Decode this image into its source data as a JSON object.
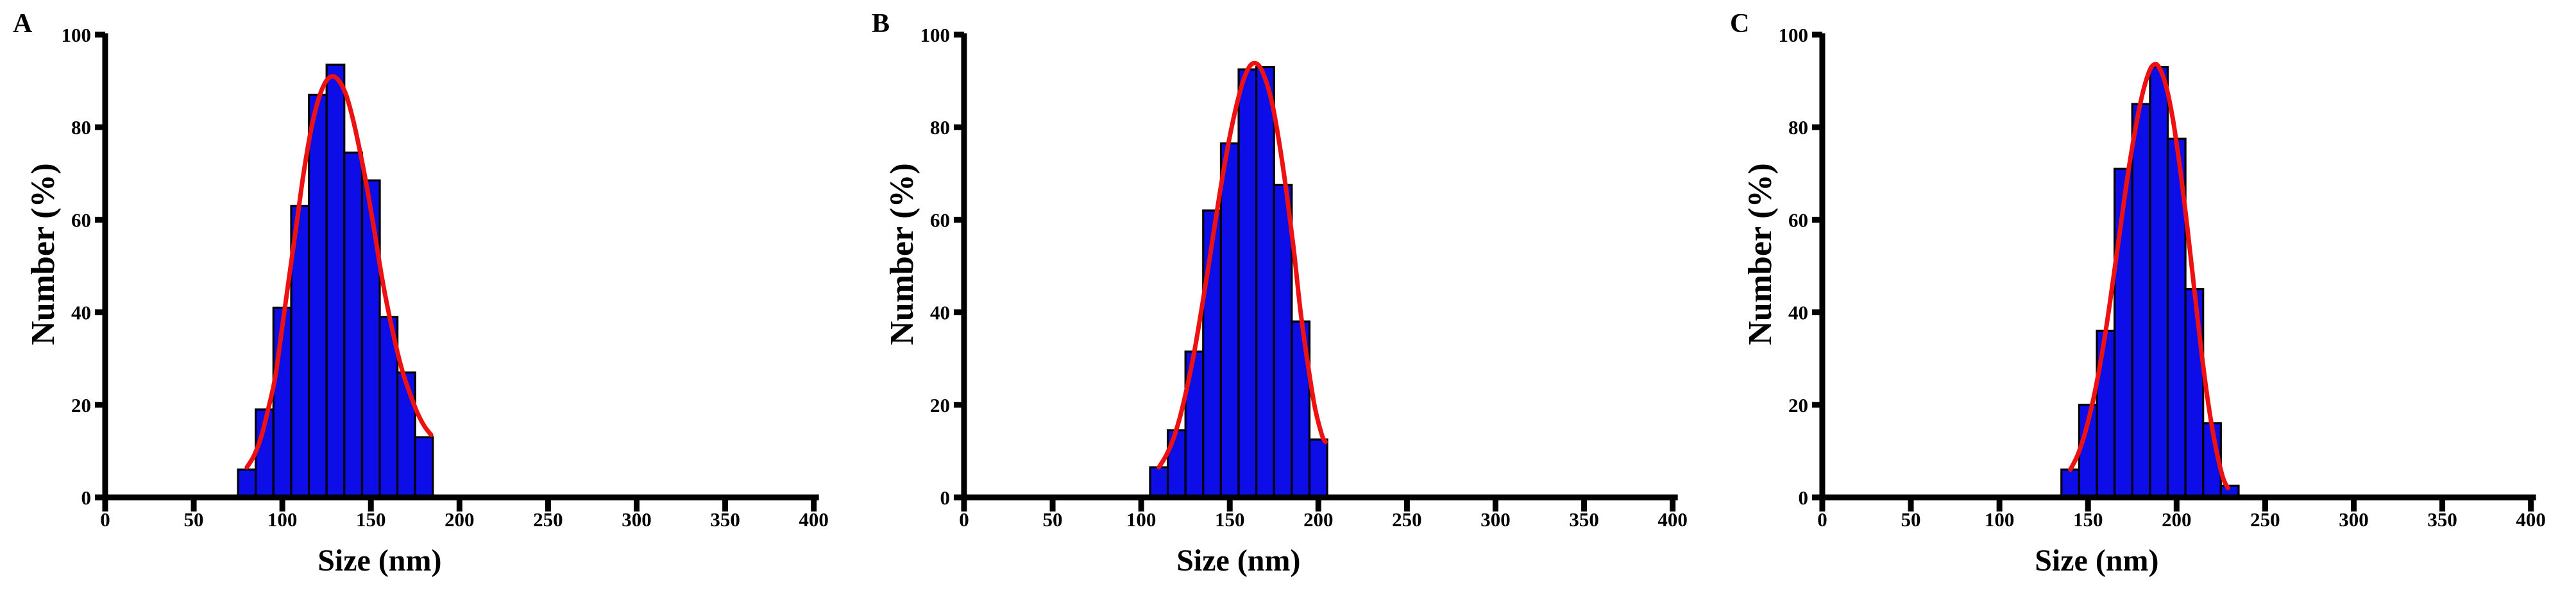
{
  "figure": {
    "background": "#ffffff",
    "styles": {
      "bar_fill": "#0D0DE8",
      "bar_edge": "#000000",
      "curve_color": "#EE1111",
      "axis_color": "#000000",
      "text_color": "#000000"
    }
  },
  "chart_data": [
    {
      "type": "bar",
      "panel_label": "A",
      "xlabel": "Size (nm)",
      "ylabel": "Number (%)",
      "xlim": [
        0,
        400
      ],
      "ylim": [
        0,
        100
      ],
      "x_ticks": [
        0,
        50,
        100,
        150,
        200,
        250,
        300,
        350,
        400
      ],
      "y_ticks": [
        0,
        20,
        40,
        60,
        80,
        100
      ],
      "grid": false,
      "legend": "none",
      "bin_start": 75,
      "bin_width": 10,
      "values": [
        6,
        19,
        41,
        63,
        87,
        93.5,
        74.5,
        68.5,
        39,
        27,
        13
      ],
      "fit_curve": {
        "name": "gaussian-fit",
        "peak_x": 128,
        "peak_y": 91,
        "points": [
          [
            80,
            6.5
          ],
          [
            84,
            9
          ],
          [
            88,
            13
          ],
          [
            92,
            19
          ],
          [
            96,
            26
          ],
          [
            100,
            37
          ],
          [
            104,
            48
          ],
          [
            108,
            59
          ],
          [
            112,
            70
          ],
          [
            116,
            79
          ],
          [
            120,
            85.5
          ],
          [
            124,
            89.5
          ],
          [
            128,
            91
          ],
          [
            132,
            90
          ],
          [
            136,
            87
          ],
          [
            140,
            81.5
          ],
          [
            144,
            74.5
          ],
          [
            148,
            66.5
          ],
          [
            152,
            57.5
          ],
          [
            156,
            48
          ],
          [
            160,
            40
          ],
          [
            164,
            33
          ],
          [
            168,
            27
          ],
          [
            172,
            22.5
          ],
          [
            176,
            18.5
          ],
          [
            180,
            15.5
          ],
          [
            184,
            13.5
          ]
        ]
      }
    },
    {
      "type": "bar",
      "panel_label": "B",
      "xlabel": "Size (nm)",
      "ylabel": "Number (%)",
      "xlim": [
        0,
        400
      ],
      "ylim": [
        0,
        100
      ],
      "x_ticks": [
        0,
        50,
        100,
        150,
        200,
        250,
        300,
        350,
        400
      ],
      "y_ticks": [
        0,
        20,
        40,
        60,
        80,
        100
      ],
      "grid": false,
      "legend": "none",
      "bin_start": 105,
      "bin_width": 10,
      "values": [
        6.5,
        14.5,
        31.5,
        62,
        76.5,
        92.5,
        93,
        67.5,
        38,
        12.5
      ],
      "fit_curve": {
        "name": "gaussian-fit",
        "peak_x": 163,
        "peak_y": 94,
        "points": [
          [
            110,
            6.5
          ],
          [
            114,
            9
          ],
          [
            118,
            12.5
          ],
          [
            122,
            17.5
          ],
          [
            126,
            24
          ],
          [
            130,
            31.5
          ],
          [
            134,
            40.5
          ],
          [
            138,
            50
          ],
          [
            142,
            60
          ],
          [
            146,
            69.5
          ],
          [
            150,
            78
          ],
          [
            154,
            85
          ],
          [
            158,
            90.5
          ],
          [
            162,
            93.5
          ],
          [
            166,
            93.5
          ],
          [
            170,
            90.5
          ],
          [
            174,
            85
          ],
          [
            178,
            76.5
          ],
          [
            182,
            66
          ],
          [
            186,
            54
          ],
          [
            190,
            40
          ],
          [
            194,
            29
          ],
          [
            198,
            19.5
          ],
          [
            202,
            13.5
          ],
          [
            204,
            12
          ]
        ]
      }
    },
    {
      "type": "bar",
      "panel_label": "C",
      "xlabel": "Size (nm)",
      "ylabel": "Number (%)",
      "xlim": [
        0,
        400
      ],
      "ylim": [
        0,
        100
      ],
      "x_ticks": [
        0,
        50,
        100,
        150,
        200,
        250,
        300,
        350,
        400
      ],
      "y_ticks": [
        0,
        20,
        40,
        60,
        80,
        100
      ],
      "grid": false,
      "legend": "none",
      "bin_start": 135,
      "bin_width": 10,
      "values": [
        6,
        20,
        36,
        71,
        85,
        93,
        77.5,
        45,
        16,
        2.5
      ],
      "fit_curve": {
        "name": "gaussian-fit",
        "peak_x": 187,
        "peak_y": 94,
        "points": [
          [
            140,
            6
          ],
          [
            144,
            9
          ],
          [
            148,
            13.5
          ],
          [
            152,
            19.5
          ],
          [
            156,
            27
          ],
          [
            160,
            36
          ],
          [
            164,
            46.5
          ],
          [
            168,
            57.5
          ],
          [
            172,
            68.5
          ],
          [
            176,
            78
          ],
          [
            180,
            86
          ],
          [
            184,
            91.5
          ],
          [
            187,
            93.5
          ],
          [
            190,
            93
          ],
          [
            194,
            89
          ],
          [
            198,
            81.5
          ],
          [
            202,
            71
          ],
          [
            206,
            58.5
          ],
          [
            210,
            45
          ],
          [
            214,
            31.5
          ],
          [
            218,
            20
          ],
          [
            222,
            11
          ],
          [
            226,
            4.5
          ],
          [
            229,
            2
          ]
        ]
      }
    }
  ]
}
